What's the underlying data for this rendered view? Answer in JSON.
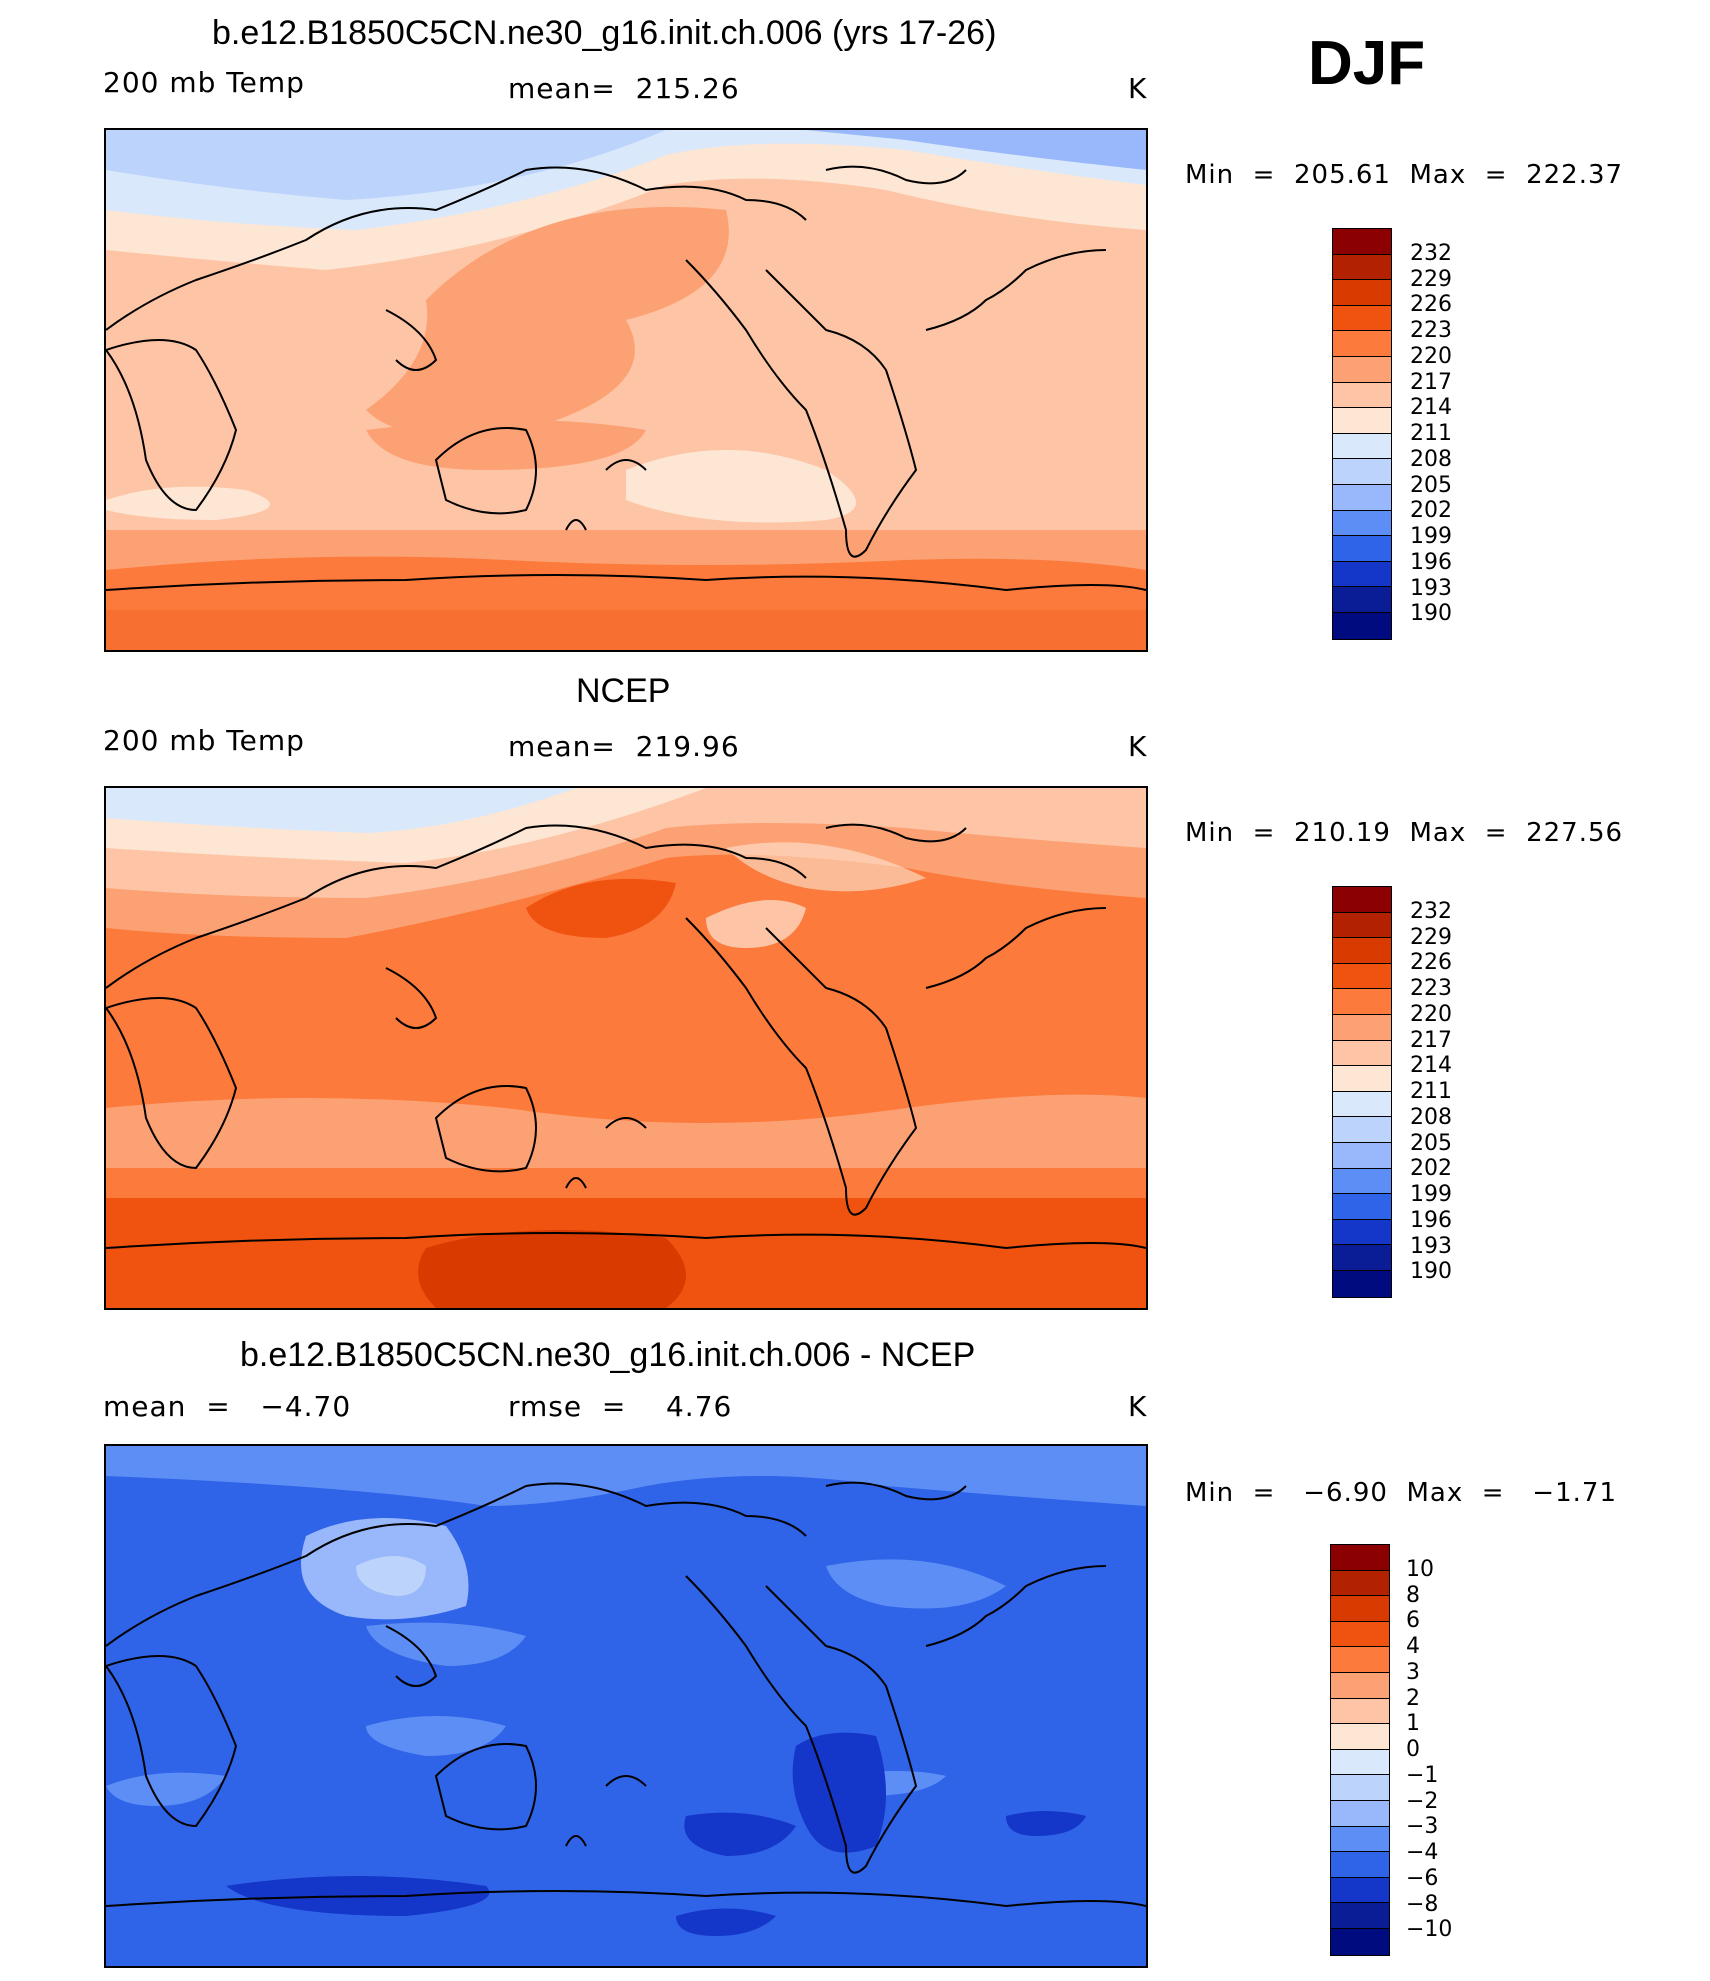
{
  "season": "DJF",
  "panels": [
    {
      "id": "model",
      "title": "b.e12.B1850C5CN.ne30_g16.init.ch.006 (yrs 17-26)",
      "left_label": "200 mb Temp",
      "center_label": "mean=  215.26",
      "units": "K",
      "minmax": "Min  =  205.61  Max  =  222.37"
    },
    {
      "id": "obs",
      "title": "NCEP",
      "left_label": "200 mb Temp",
      "center_label": "mean=  219.96",
      "units": "K",
      "minmax": "Min  =  210.19  Max  =  227.56"
    },
    {
      "id": "diff",
      "title": "b.e12.B1850C5CN.ne30_g16.init.ch.006 - NCEP",
      "left_label": "mean  =   −4.70",
      "center_label": "rmse  =    4.76",
      "units": "K",
      "minmax": "Min  =   −6.90  Max  =   −1.71"
    }
  ],
  "colorbars": {
    "abs_labels": [
      "232",
      "229",
      "226",
      "223",
      "220",
      "217",
      "214",
      "211",
      "208",
      "205",
      "202",
      "199",
      "196",
      "193",
      "190"
    ],
    "diff_labels": [
      "10",
      "8",
      "6",
      "4",
      "3",
      "2",
      "1",
      "0",
      "−1",
      "−2",
      "−3",
      "−4",
      "−6",
      "−8",
      "−10"
    ],
    "colors": [
      "#8b0000",
      "#b22200",
      "#d93a00",
      "#f0520f",
      "#fb7a3c",
      "#fca173",
      "#fdc5a6",
      "#fde6d4",
      "#d9e8fb",
      "#bcd3fb",
      "#99b7fb",
      "#5d8ef5",
      "#2f63e8",
      "#1436c9",
      "#0a1c96",
      "#000b80"
    ]
  },
  "icons": {
    "map_outline": "world-coastline-icon"
  }
}
